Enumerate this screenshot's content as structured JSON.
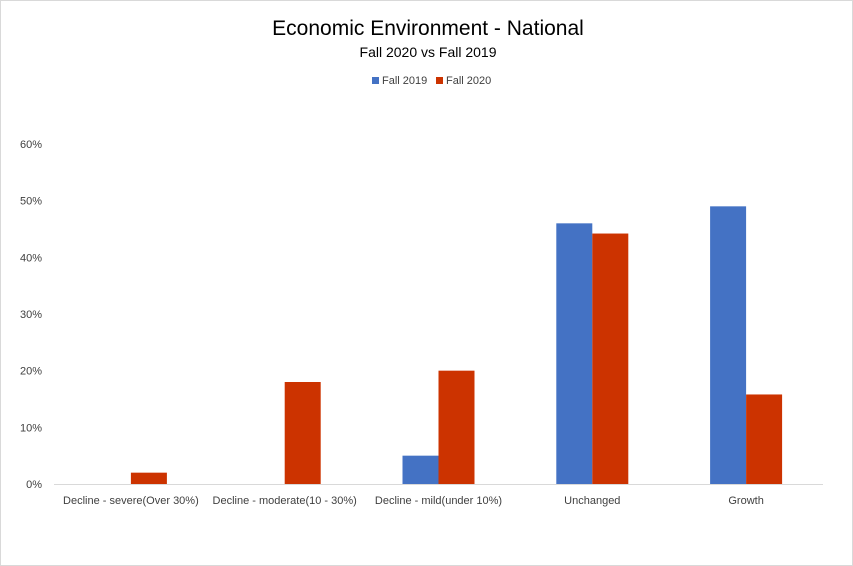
{
  "chart_data": {
    "type": "bar",
    "title": "Economic Environment - National",
    "subtitle": "Fall 2020 vs Fall 2019",
    "categories": [
      "Decline - severe(Over 30%)",
      "Decline - moderate(10 - 30%)",
      "Decline - mild(under 10%)",
      "Unchanged",
      "Growth"
    ],
    "series": [
      {
        "name": "Fall 2019",
        "color": "#4472C4",
        "values": [
          0,
          0,
          5,
          46,
          49
        ]
      },
      {
        "name": "Fall 2020",
        "color": "#CC3300",
        "values": [
          2,
          18,
          20,
          44.2,
          15.8
        ]
      }
    ],
    "ylim": [
      0,
      60
    ],
    "yticks": [
      "0%",
      "10%",
      "20%",
      "30%",
      "40%",
      "50%",
      "60%"
    ],
    "ytick_values": [
      0,
      10,
      20,
      30,
      40,
      50,
      60
    ],
    "legend_position": "top-center",
    "grid": false,
    "xlabel": "",
    "ylabel": ""
  }
}
